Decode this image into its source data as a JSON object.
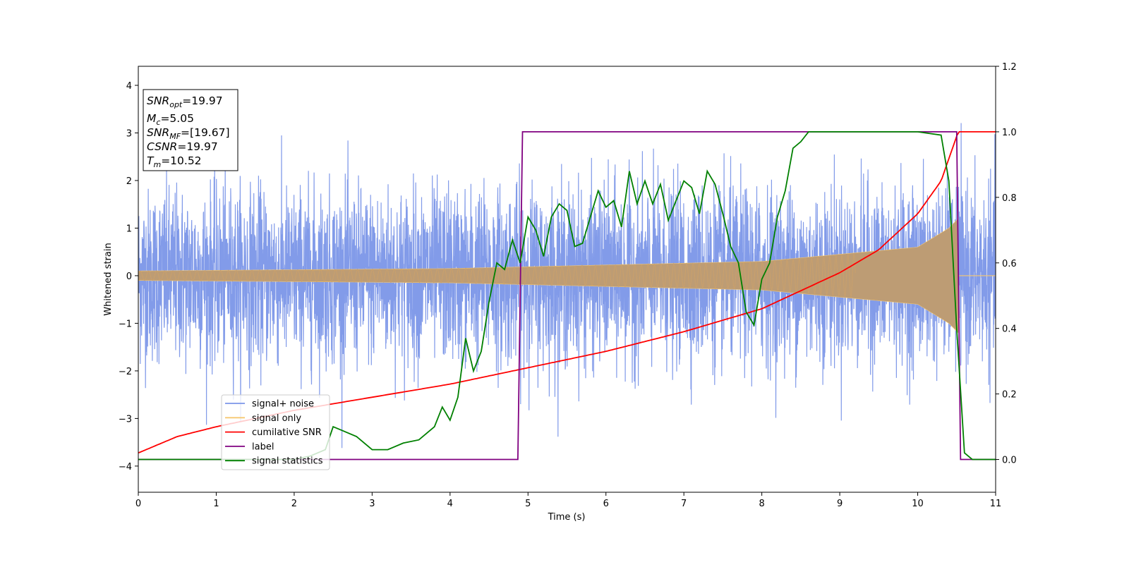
{
  "chart_data": {
    "type": "line",
    "xlabel": "Time (s)",
    "ylabel": "Whitened strain",
    "xlim": [
      0,
      11
    ],
    "ylim_left": [
      -4.55,
      4.4
    ],
    "ylim_right": [
      -0.1,
      1.2
    ],
    "xticks": [
      "0",
      "1",
      "2",
      "3",
      "4",
      "5",
      "6",
      "7",
      "8",
      "9",
      "10",
      "11"
    ],
    "yticks_left": [
      "−4",
      "−3",
      "−2",
      "−1",
      "0",
      "1",
      "2",
      "3",
      "4"
    ],
    "yticks_right": [
      "0.0",
      "0.2",
      "0.4",
      "0.6",
      "0.8",
      "1.0",
      "1.2"
    ],
    "grid": false,
    "legend_position": "lower-left",
    "annotation": {
      "lines": [
        {
          "sym": "SNR",
          "sub": "opt",
          "value": "=19.97"
        },
        {
          "sym": "M",
          "sub": "c",
          "value": "=5.05"
        },
        {
          "sym": "SNR",
          "sub": "MF",
          "value": "=[19.67]"
        },
        {
          "sym": "CSNR",
          "sub": "",
          "value": "=19.97"
        },
        {
          "sym": "T",
          "sub": "m",
          "value": "=10.52"
        }
      ]
    },
    "series": [
      {
        "name": "signal+ noise",
        "axis": "left",
        "color": "#7b96e8",
        "description_values": "noise std 0.9 around 0, peaks to ±4"
      },
      {
        "name": "signal only",
        "axis": "left",
        "color": "#f6c871",
        "amplitude_envelope": {
          "x": [
            0,
            4,
            8,
            10,
            10.4,
            10.52
          ],
          "y": [
            0.1,
            0.15,
            0.3,
            0.6,
            1.0,
            1.2
          ]
        },
        "end_time": 10.52
      },
      {
        "name": "cumilative SNR",
        "axis": "right",
        "color": "#ff0000",
        "x": [
          0,
          0.5,
          1,
          2,
          3,
          4,
          5,
          6,
          7,
          8,
          9,
          9.5,
          10,
          10.3,
          10.52,
          11
        ],
        "y": [
          0.02,
          0.07,
          0.1,
          0.15,
          0.19,
          0.23,
          0.28,
          0.33,
          0.39,
          0.46,
          0.57,
          0.64,
          0.75,
          0.85,
          1.0,
          1.0
        ]
      },
      {
        "name": "label",
        "axis": "right",
        "color": "#800080",
        "x": [
          0,
          4.87,
          4.93,
          10.5,
          10.55,
          11
        ],
        "y": [
          0.0,
          0.0,
          1.0,
          1.0,
          0.0,
          0.0
        ]
      },
      {
        "name": "signal statistics",
        "axis": "right",
        "color": "#008000",
        "x": [
          0,
          2.0,
          2.2,
          2.4,
          2.5,
          2.6,
          2.8,
          3.0,
          3.2,
          3.4,
          3.6,
          3.8,
          3.9,
          4.0,
          4.1,
          4.2,
          4.3,
          4.4,
          4.5,
          4.6,
          4.7,
          4.8,
          4.9,
          5.0,
          5.1,
          5.2,
          5.3,
          5.4,
          5.5,
          5.6,
          5.7,
          5.8,
          5.9,
          6.0,
          6.1,
          6.2,
          6.3,
          6.4,
          6.5,
          6.6,
          6.7,
          6.8,
          6.9,
          7.0,
          7.1,
          7.2,
          7.3,
          7.4,
          7.5,
          7.6,
          7.7,
          7.8,
          7.9,
          8.0,
          8.1,
          8.2,
          8.3,
          8.4,
          8.5,
          8.6,
          8.8,
          9.0,
          9.2,
          9.5,
          9.8,
          10.0,
          10.3,
          10.4,
          10.5,
          10.6,
          10.7,
          11.0
        ],
        "y": [
          0.0,
          0.0,
          0.01,
          0.03,
          0.1,
          0.09,
          0.07,
          0.03,
          0.03,
          0.05,
          0.06,
          0.1,
          0.16,
          0.12,
          0.19,
          0.37,
          0.27,
          0.33,
          0.48,
          0.6,
          0.58,
          0.67,
          0.6,
          0.74,
          0.7,
          0.62,
          0.74,
          0.78,
          0.76,
          0.65,
          0.66,
          0.74,
          0.82,
          0.77,
          0.79,
          0.71,
          0.88,
          0.78,
          0.85,
          0.78,
          0.84,
          0.73,
          0.79,
          0.85,
          0.83,
          0.75,
          0.88,
          0.84,
          0.75,
          0.65,
          0.6,
          0.45,
          0.41,
          0.55,
          0.6,
          0.74,
          0.82,
          0.95,
          0.97,
          1.0,
          1.0,
          1.0,
          1.0,
          1.0,
          1.0,
          1.0,
          0.99,
          0.85,
          0.4,
          0.02,
          0.0,
          0.0
        ]
      }
    ]
  }
}
